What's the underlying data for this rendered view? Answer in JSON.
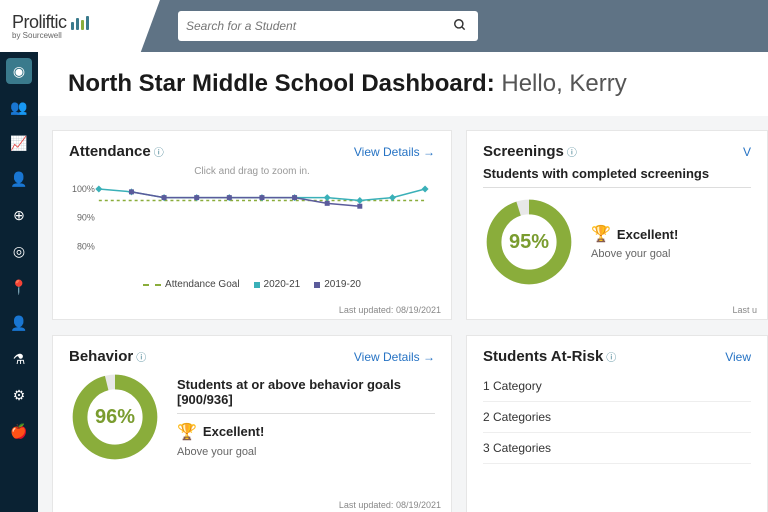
{
  "brand": {
    "name": "Proliftic",
    "byline": "by Sourcewell"
  },
  "search": {
    "placeholder": "Search for a Student"
  },
  "page": {
    "title": "North Star Middle School Dashboard:",
    "greeting": "Hello, Kerry"
  },
  "sidebar": {
    "items": [
      {
        "name": "globe-icon",
        "glyph": "◉",
        "active": true
      },
      {
        "name": "people-icon",
        "glyph": "👥",
        "active": false
      },
      {
        "name": "chart-icon",
        "glyph": "📈",
        "active": false
      },
      {
        "name": "person-icon",
        "glyph": "👤",
        "active": false
      },
      {
        "name": "compass-icon",
        "glyph": "⊕",
        "active": false
      },
      {
        "name": "target-icon",
        "glyph": "◎",
        "active": false
      },
      {
        "name": "pin-icon",
        "glyph": "📍",
        "active": false
      },
      {
        "name": "user-icon",
        "glyph": "👤",
        "active": false
      },
      {
        "name": "flask-icon",
        "glyph": "⚗",
        "active": false
      },
      {
        "name": "gear-icon",
        "glyph": "⚙",
        "active": false
      },
      {
        "name": "apple-icon",
        "glyph": "🍎",
        "active": false
      }
    ]
  },
  "common": {
    "view_details": "View Details →",
    "last_updated_label": "Last updated:"
  },
  "colors": {
    "accent": "#3a7a8c",
    "donut_fill": "#8aad3b",
    "donut_track": "#e8e8e8",
    "link": "#2673c4",
    "sidebar_bg": "#0a2233",
    "header_bg": "#5f7385"
  },
  "attendance": {
    "title": "Attendance",
    "hint": "Click and drag to zoom in.",
    "last_updated": "08/19/2021",
    "chart": {
      "type": "line",
      "y_ticks": [
        100,
        90,
        80
      ],
      "ylim": [
        75,
        102
      ],
      "x_count": 11,
      "series": [
        {
          "name": "2020-21",
          "color": "#3ab0b8",
          "marker": "diamond",
          "values": [
            100,
            99,
            97,
            97,
            97,
            97,
            97,
            97,
            96,
            97,
            100
          ]
        },
        {
          "name": "2019-20",
          "color": "#5b5b9b",
          "marker": "square",
          "values": [
            null,
            99,
            97,
            97,
            97,
            97,
            97,
            95,
            94,
            null,
            null
          ]
        }
      ],
      "goal": {
        "name": "Attendance Goal",
        "color": "#8aad3b",
        "style": "dashed",
        "value": 96
      }
    },
    "legend": [
      "Attendance Goal",
      "2020-21",
      "2019-20"
    ]
  },
  "screenings": {
    "title": "Screenings",
    "subtitle": "Students with completed screenings",
    "pct": 95,
    "pct_label": "95%",
    "status": "Excellent!",
    "status_sub": "Above your goal",
    "last_updated": ""
  },
  "behavior": {
    "title": "Behavior",
    "subtitle": "Students at or above behavior goals [900/936]",
    "pct": 96,
    "pct_label": "96%",
    "status": "Excellent!",
    "status_sub": "Above your goal",
    "last_updated": "08/19/2021"
  },
  "atrisk": {
    "title": "Students At-Risk",
    "rows": [
      "1 Category",
      "2 Categories",
      "3 Categories"
    ],
    "view_partial": "View"
  }
}
